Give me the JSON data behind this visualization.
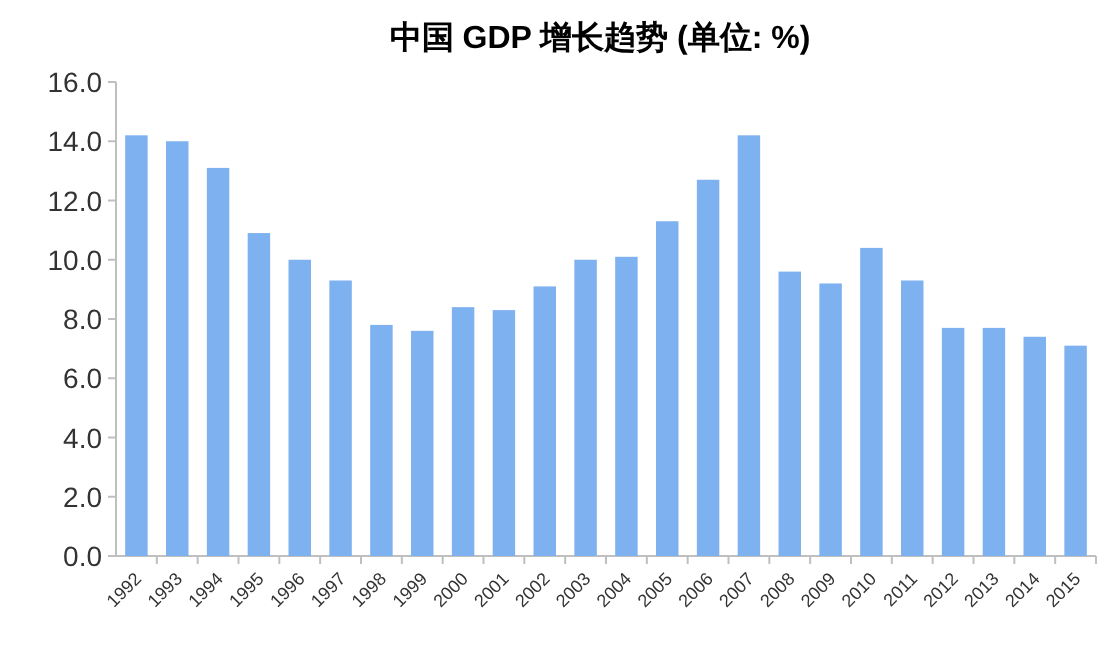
{
  "chart_data": {
    "type": "bar",
    "title": "中国 GDP 增长趋势 (单位: %)",
    "categories": [
      "1992",
      "1993",
      "1994",
      "1995",
      "1996",
      "1997",
      "1998",
      "1999",
      "2000",
      "2001",
      "2002",
      "2003",
      "2004",
      "2005",
      "2006",
      "2007",
      "2008",
      "2009",
      "2010",
      "2011",
      "2012",
      "2013",
      "2014",
      "2015"
    ],
    "values": [
      14.2,
      14.0,
      13.1,
      10.9,
      10.0,
      9.3,
      7.8,
      7.6,
      8.4,
      8.3,
      9.1,
      10.0,
      10.1,
      11.3,
      12.7,
      14.2,
      9.6,
      9.2,
      10.4,
      9.3,
      7.7,
      7.7,
      7.4,
      7.1
    ],
    "color": "#7eb1ef",
    "ylim": [
      0,
      16
    ],
    "yticks": [
      {
        "value": 0,
        "label": "0.0"
      },
      {
        "value": 2,
        "label": "2.0"
      },
      {
        "value": 4,
        "label": "4.0"
      },
      {
        "value": 6,
        "label": "6.0"
      },
      {
        "value": 8,
        "label": "8.0"
      },
      {
        "value": 10,
        "label": "10.0"
      },
      {
        "value": 12,
        "label": "12.0"
      },
      {
        "value": 14,
        "label": "14.0"
      },
      {
        "value": 16,
        "label": "16.0"
      }
    ]
  }
}
